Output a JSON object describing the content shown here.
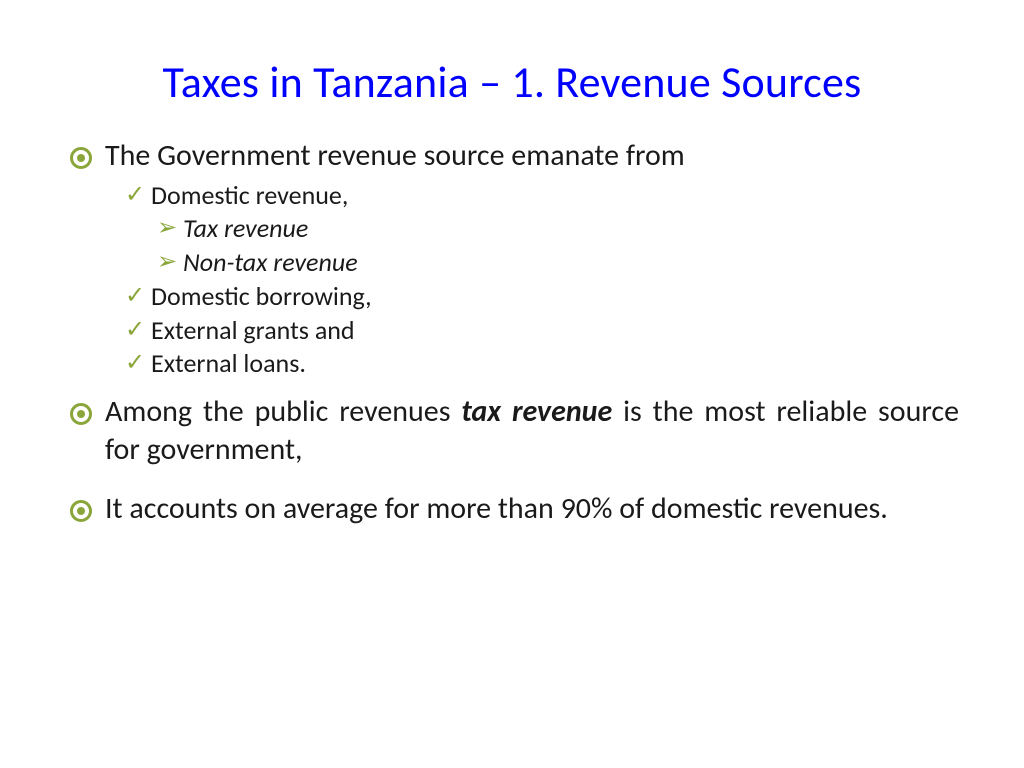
{
  "colors": {
    "title": "#0000ff",
    "bullet_marker": "#8aa63a",
    "text": "#1a1a1a",
    "background": "#ffffff"
  },
  "typography": {
    "title_fontsize": 44,
    "body_l1_fontsize": 30,
    "body_l2_fontsize": 26,
    "body_l3_fontsize": 26,
    "font_family": "Calibri"
  },
  "title": "Taxes in Tanzania – 1. Revenue Sources",
  "bullets": {
    "b1": "The Government revenue source emanate from",
    "b1_sub": {
      "s1": "Domestic revenue,",
      "s1_sub": {
        "a": "Tax revenue",
        "b": "Non-tax revenue"
      },
      "s2": "Domestic borrowing,",
      "s3": "External grants and",
      "s4": "External loans."
    },
    "b2_pre": "Among the public revenues ",
    "b2_bold": "tax revenue",
    "b2_post": " is the most reliable source for government,",
    "b3": "It accounts on average for more than 90% of domestic revenues."
  }
}
